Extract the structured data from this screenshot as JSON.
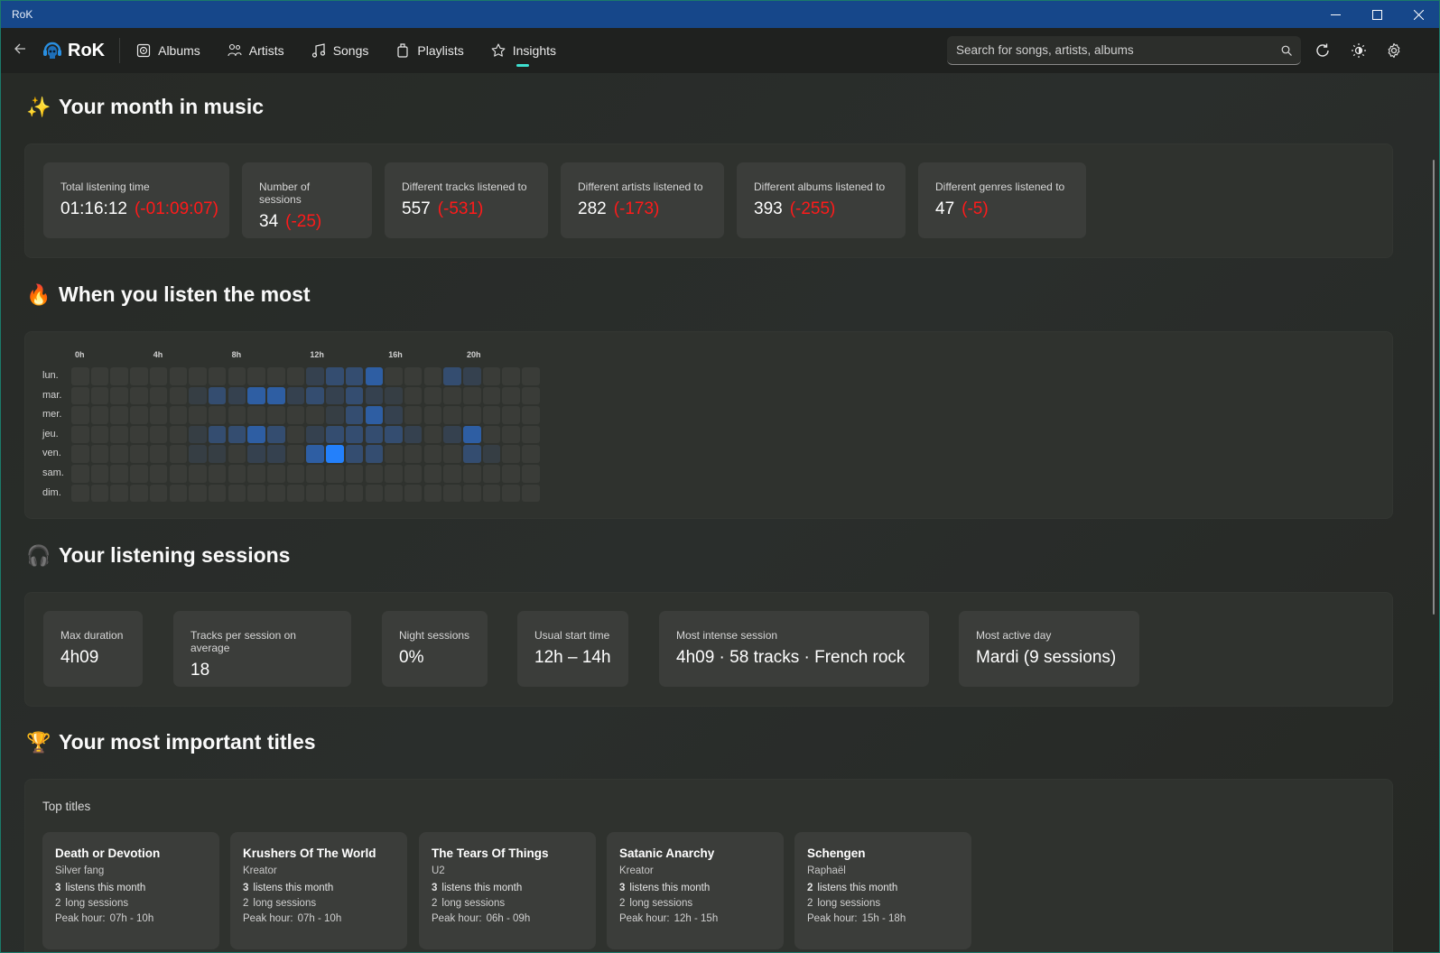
{
  "window": {
    "title": "RoK",
    "controls": {
      "minimize": "—",
      "maximize": "☐",
      "close": "✕"
    }
  },
  "nav": {
    "brand": "RoK",
    "items": [
      {
        "label": "Albums",
        "icon": "album-icon"
      },
      {
        "label": "Artists",
        "icon": "artists-icon"
      },
      {
        "label": "Songs",
        "icon": "music-note-icon"
      },
      {
        "label": "Playlists",
        "icon": "playlist-icon"
      },
      {
        "label": "Insights",
        "icon": "star-icon",
        "active": true
      }
    ],
    "search": {
      "placeholder": "Search for songs, artists, albums",
      "value": ""
    }
  },
  "month": {
    "title": "Your month in music",
    "icon": "sparkles-icon",
    "stats": [
      {
        "label": "Total listening time",
        "value": "01:16:12",
        "delta": "(-01:09:07)"
      },
      {
        "label": "Number of sessions",
        "value": "34",
        "delta": "(-25)"
      },
      {
        "label": "Different tracks listened to",
        "value": "557",
        "delta": "(-531)"
      },
      {
        "label": "Different artists listened to",
        "value": "282",
        "delta": "(-173)"
      },
      {
        "label": "Different albums listened to",
        "value": "393",
        "delta": "(-255)"
      },
      {
        "label": "Different genres listened to",
        "value": "47",
        "delta": "(-5)"
      }
    ],
    "delta_color": "#ff1a1a"
  },
  "when": {
    "title": "When you listen the most",
    "icon": "fire-icon",
    "hour_labels": [
      "0h",
      "4h",
      "8h",
      "12h",
      "16h",
      "20h"
    ],
    "days": [
      "lun.",
      "mar.",
      "mer.",
      "jeu.",
      "ven.",
      "sam.",
      "dim."
    ],
    "heatmap_levels": [
      [
        0,
        0,
        0,
        0,
        0,
        0,
        0,
        0,
        0,
        0,
        0,
        0,
        1,
        2,
        2,
        3,
        0,
        0,
        0,
        2,
        1,
        0,
        0,
        0
      ],
      [
        0,
        0,
        0,
        0,
        0,
        0,
        0.5,
        2,
        1,
        3,
        3,
        1,
        2,
        1,
        2,
        1,
        0.5,
        0,
        0,
        0,
        0,
        0,
        0,
        0
      ],
      [
        0,
        0,
        0,
        0,
        0,
        0,
        0,
        0,
        0,
        0,
        0,
        0,
        0,
        0.5,
        2,
        3,
        1,
        0,
        0,
        0,
        0,
        0,
        0,
        0
      ],
      [
        0,
        0,
        0,
        0,
        0,
        0,
        0.5,
        2,
        2,
        3,
        2,
        0,
        1,
        2,
        2,
        2,
        2,
        1,
        0,
        1,
        3,
        0,
        0,
        0
      ],
      [
        0,
        0,
        0,
        0,
        0,
        0,
        0.5,
        0.5,
        0,
        1,
        1,
        0,
        3,
        4,
        2,
        2,
        0,
        0,
        0,
        0,
        2,
        0.5,
        0,
        0
      ],
      [
        0,
        0,
        0,
        0,
        0,
        0,
        0,
        0,
        0,
        0,
        0,
        0,
        0,
        0,
        0,
        0,
        0,
        0,
        0,
        0,
        0,
        0,
        0,
        0
      ],
      [
        0,
        0,
        0,
        0,
        0,
        0,
        0,
        0,
        0,
        0,
        0,
        0,
        0,
        0,
        0,
        0,
        0,
        0,
        0,
        0,
        0,
        0,
        0,
        0
      ]
    ],
    "accent": "#2380fb"
  },
  "sessions": {
    "title": "Your listening sessions",
    "icon": "headphones-icon",
    "stats": [
      {
        "label": "Max duration",
        "value": "4h09"
      },
      {
        "label": "Tracks per session on average",
        "value": "18"
      },
      {
        "label": "Night sessions",
        "value": "0%"
      },
      {
        "label": "Usual start time",
        "value": "12h – 14h"
      },
      {
        "label": "Most intense session",
        "value": "4h09 · 58 tracks · French rock"
      },
      {
        "label": "Most active day",
        "value": "Mardi (9 sessions)"
      }
    ]
  },
  "titles": {
    "title": "Your most important titles",
    "icon": "trophy-icon",
    "subtitle": "Top titles",
    "listens_label": "listens this month",
    "long_label": "long sessions",
    "peak_label": "Peak hour:",
    "items": [
      {
        "name": "Death or Devotion",
        "artist": "Silver fang",
        "listens": "3",
        "long": "2",
        "peak": "07h - 10h"
      },
      {
        "name": "Krushers Of The World",
        "artist": "Kreator",
        "listens": "3",
        "long": "2",
        "peak": "07h - 10h"
      },
      {
        "name": "The Tears Of Things",
        "artist": "U2",
        "listens": "3",
        "long": "2",
        "peak": "06h - 09h"
      },
      {
        "name": "Satanic Anarchy",
        "artist": "Kreator",
        "listens": "3",
        "long": "2",
        "peak": "12h - 15h"
      },
      {
        "name": "Schengen",
        "artist": "Raphaël",
        "listens": "2",
        "long": "2",
        "peak": "15h - 18h"
      }
    ]
  }
}
